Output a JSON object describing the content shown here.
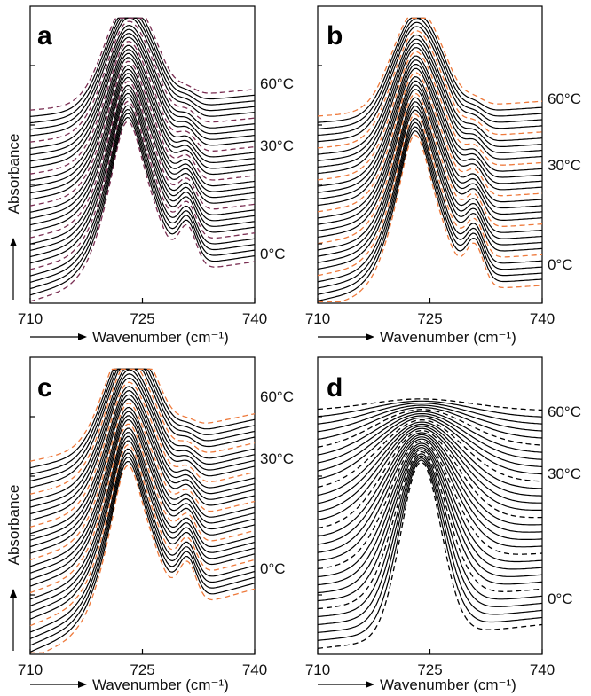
{
  "figure": {
    "ylabel": "Absorbance",
    "xlabel": "Wavenumber (cm⁻¹)"
  },
  "colors": {
    "solid": "#000000",
    "dashed_a": "#7a2e52",
    "dashed_bc": "#ee7a3c",
    "dashed_d": "#000000"
  },
  "chart_data": [
    {
      "type": "line",
      "panel": "a",
      "x_ticks": [
        "710",
        "725",
        "740"
      ],
      "xlim": [
        710,
        740
      ],
      "temperature_labels": [
        "60°C",
        "30°C",
        "0°C"
      ],
      "curve_count": 31,
      "dashed_every": 5,
      "peaks_cm": [
        721,
        731
      ],
      "y_offset_trend": "spectra stacked vertically from 0°C (bottom) to 60°C (top)"
    },
    {
      "type": "line",
      "panel": "b",
      "x_ticks": [
        "710",
        "725",
        "740"
      ],
      "xlim": [
        710,
        740
      ],
      "temperature_labels": [
        "60°C",
        "30°C",
        "0°C"
      ],
      "curve_count": 31,
      "dashed_every": 5,
      "peaks_cm": [
        721,
        731
      ]
    },
    {
      "type": "line",
      "panel": "c",
      "x_ticks": [
        "710",
        "725",
        "740"
      ],
      "xlim": [
        710,
        740
      ],
      "temperature_labels": [
        "60°C",
        "30°C",
        "0°C"
      ],
      "curve_count": 31,
      "dashed_every": 5,
      "peaks_cm": [
        721,
        731
      ]
    },
    {
      "type": "line",
      "panel": "d",
      "x_ticks": [
        "710",
        "725",
        "740"
      ],
      "xlim": [
        710,
        740
      ],
      "temperature_labels": [
        "60°C",
        "30°C",
        "0°C"
      ],
      "curve_count": 31,
      "dashed_every": 5,
      "peaks_cm": [
        724
      ]
    }
  ]
}
